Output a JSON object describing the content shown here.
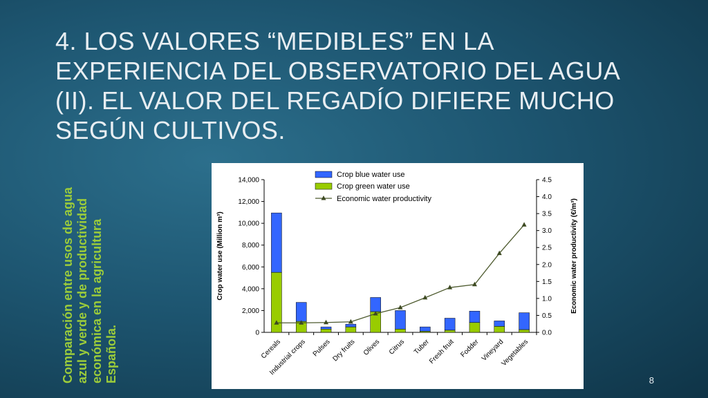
{
  "slide": {
    "title_lines": [
      "4.    LOS VALORES “MEDIBLES” EN LA",
      "EXPERIENCIA DEL OBSERVATORIO DEL AGUA",
      "(II). EL VALOR DEL REGADÍO DIFIERE MUCHO",
      "SEGÚN CULTIVOS."
    ],
    "side_caption_lines": [
      "Comparación entre usos de agua",
      "azul y verde y de productividad",
      "económica en la agricultura",
      "Española."
    ],
    "page_number": "8",
    "colors": {
      "caption": "#9ccc3a",
      "title": "#e8eef2"
    }
  },
  "chart_data": {
    "type": "bar",
    "categories": [
      "Cereals",
      "Industrial crops",
      "Pulses",
      "Dry fruits",
      "Olives",
      "Citrus",
      "Tuber",
      "Fresh fruit",
      "Fodder",
      "Vineyard",
      "Vegetables"
    ],
    "series": [
      {
        "name": "Crop green water use",
        "kind": "bar-stacked",
        "axis": "left",
        "color": "#99cc00",
        "values": [
          5500,
          1000,
          300,
          500,
          1900,
          300,
          100,
          200,
          900,
          550,
          250
        ]
      },
      {
        "name": "Crop blue water use",
        "kind": "bar-stacked",
        "axis": "left",
        "color": "#3366ff",
        "values": [
          5450,
          1750,
          200,
          250,
          1300,
          1700,
          400,
          1100,
          1050,
          500,
          1550
        ]
      },
      {
        "name": "Economic water productivity",
        "kind": "line",
        "axis": "right",
        "color": "#4d5a2e",
        "marker": "triangle",
        "values": [
          0.28,
          0.28,
          0.29,
          0.31,
          0.55,
          0.73,
          1.02,
          1.32,
          1.41,
          2.33,
          3.17
        ]
      }
    ],
    "legend_order": [
      "Crop blue water use",
      "Crop green water use",
      "Economic water productivity"
    ],
    "legend_position": "top",
    "ylabel": "Crop water use (Million m³)",
    "y2label": "Economic water productivity (€/m³)",
    "ylim": [
      0,
      14000
    ],
    "y2lim": [
      0,
      4.5
    ],
    "yticks": [
      "0",
      "2,000",
      "4,000",
      "6,000",
      "8,000",
      "10,000",
      "12,000",
      "14,000"
    ],
    "y2ticks": [
      "0.0",
      "0.5",
      "1.0",
      "1.5",
      "2.0",
      "2.5",
      "3.0",
      "3.5",
      "4.0",
      "4.5"
    ],
    "grid": false
  }
}
